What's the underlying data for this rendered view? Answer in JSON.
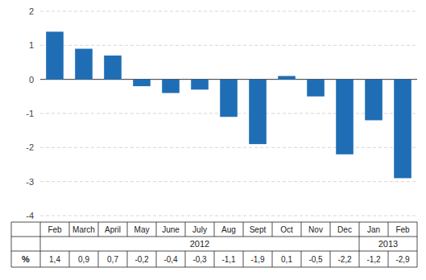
{
  "chart_data": {
    "type": "bar",
    "categories": [
      "Feb",
      "March",
      "April",
      "May",
      "June",
      "July",
      "Aug",
      "Sept",
      "Oct",
      "Nov",
      "Dec",
      "Jan",
      "Feb"
    ],
    "values": [
      1.4,
      0.9,
      0.7,
      -0.2,
      -0.4,
      -0.3,
      -1.1,
      -1.9,
      0.1,
      -0.5,
      -2.2,
      -1.2,
      -2.9
    ],
    "value_labels": [
      "1,4",
      "0,9",
      "0,7",
      "-0,2",
      "-0,4",
      "-0,3",
      "-1,1",
      "-1,9",
      "0,1",
      "-0,5",
      "-2,2",
      "-1,2",
      "-2,9"
    ],
    "data_labels": true,
    "color": "#1f6eb5",
    "ylim": [
      -4,
      2
    ],
    "yticks": [
      -4,
      -3,
      -2,
      -1,
      0,
      1,
      2
    ],
    "grid": true,
    "annotations": [
      {
        "text": "%"
      },
      {
        "text": "2012",
        "x": 5.0
      },
      {
        "text": "2013",
        "x": 11.5
      }
    ]
  }
}
